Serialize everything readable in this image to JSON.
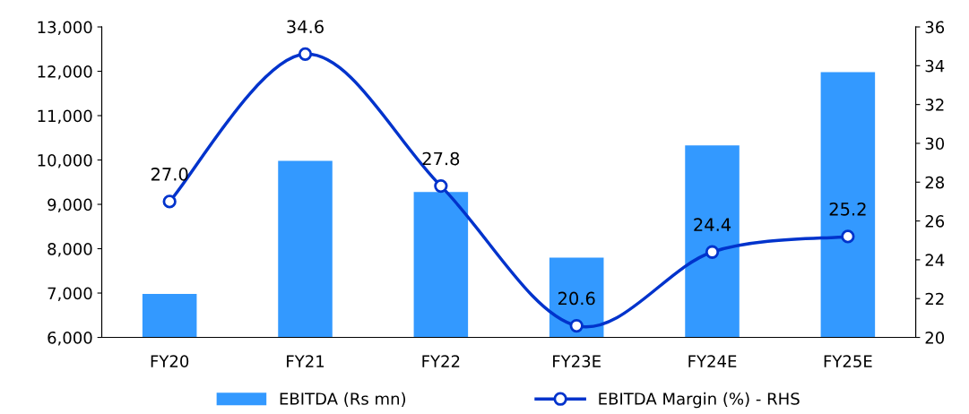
{
  "chart_data": {
    "type": "bar",
    "categories": [
      "FY20",
      "FY21",
      "FY22",
      "FY23E",
      "FY24E",
      "FY25E"
    ],
    "series": [
      {
        "name": "EBITDA (Rs mn)",
        "color": "#3399ff",
        "values": [
          6980,
          9980,
          9280,
          7800,
          10330,
          11980
        ]
      },
      {
        "name": "EBITDA Margin (%) - RHS",
        "type": "line",
        "axis": "y2",
        "color": "#0033cc",
        "marker": "circle",
        "values": [
          27.0,
          34.6,
          27.8,
          20.6,
          24.4,
          25.2
        ],
        "value_labels": [
          "27.0",
          "34.6",
          "27.8",
          "20.6",
          "24.4",
          "25.2"
        ]
      }
    ],
    "ylim": [
      6000,
      13000
    ],
    "yticks": [
      {
        "value": 6000,
        "label": "6,000"
      },
      {
        "value": 7000,
        "label": "7,000"
      },
      {
        "value": 8000,
        "label": "8,000"
      },
      {
        "value": 9000,
        "label": "9,000"
      },
      {
        "value": 10000,
        "label": "10,000"
      },
      {
        "value": 11000,
        "label": "11,000"
      },
      {
        "value": 12000,
        "label": "12,000"
      },
      {
        "value": 13000,
        "label": "13,000"
      }
    ],
    "y2lim": [
      20,
      36
    ],
    "y2ticks": [
      20,
      22,
      24,
      26,
      28,
      30,
      32,
      34,
      36
    ],
    "grid": false,
    "legend": "bottom"
  }
}
